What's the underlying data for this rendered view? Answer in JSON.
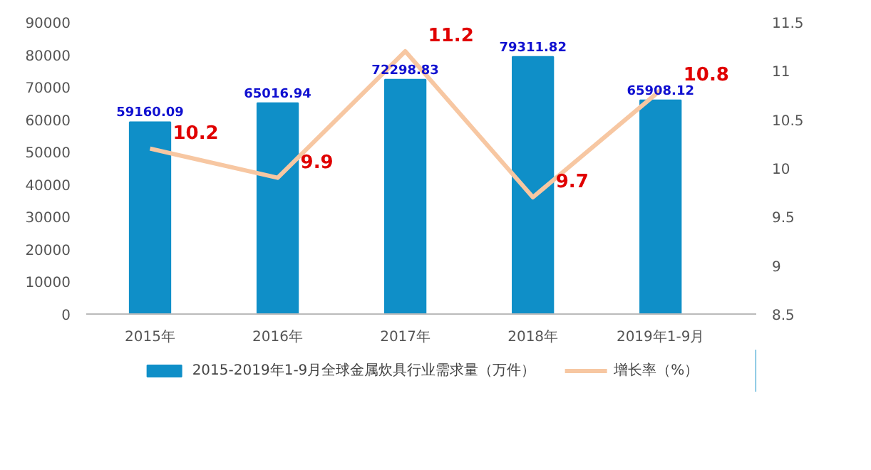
{
  "chart_data": {
    "type": "bar",
    "categories": [
      "2015年",
      "2016年",
      "2017年",
      "2018年",
      "2019年1-9月"
    ],
    "series": [
      {
        "name": "2015-2019年1-9月全球金属炊具行业需求量（万件）",
        "color": "#0f8fc8",
        "values": [
          59160.09,
          65016.94,
          72298.83,
          79311.82,
          65908.12
        ]
      },
      {
        "name": "增长率（%）",
        "type": "line",
        "axis": "y2",
        "color": "#f7c7a2",
        "values": [
          10.2,
          9.9,
          11.2,
          9.7,
          10.8
        ]
      }
    ],
    "ylim": [
      0,
      90000
    ],
    "yticks": [
      0,
      10000,
      20000,
      30000,
      40000,
      50000,
      60000,
      70000,
      80000,
      90000
    ],
    "y2lim": [
      8.5,
      11.5
    ],
    "y2ticks": [
      8.5,
      9,
      9.5,
      10,
      10.5,
      11,
      11.5
    ],
    "data_labels": true,
    "legend": "bottom",
    "grid": false,
    "marker": "none",
    "line_style": "solid"
  }
}
